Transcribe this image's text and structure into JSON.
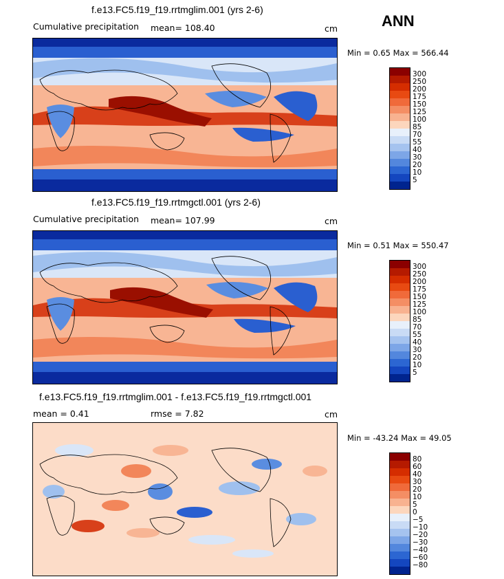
{
  "season": "ANN",
  "panels": [
    {
      "title": "f.e13.FC5.f19_f19.rrtmglim.001 (yrs 2-6)",
      "variable": "Cumulative precipitation",
      "stats_text": "mean=  108.40",
      "units": "cm",
      "minmax_text": "Min =   0.65 Max = 566.44",
      "palette": "prec"
    },
    {
      "title": "f.e13.FC5.f19_f19.rrtmgctl.001 (yrs 2-6)",
      "variable": "Cumulative precipitation",
      "stats_text": "mean=  107.99",
      "units": "cm",
      "minmax_text": "Min =   0.51 Max = 550.47",
      "palette": "prec"
    },
    {
      "title": "f.e13.FC5.f19_f19.rrtmglim.001 - f.e13.FC5.f19_f19.rrtmgctl.001",
      "variable": "mean =    0.41",
      "stats_text": "rmse =    7.82",
      "units": "cm",
      "minmax_text": "Min = -43.24 Max =  49.05",
      "palette": "diff"
    }
  ],
  "chart_data": [
    {
      "type": "heatmap",
      "title": "f.e13.FC5.f19_f19.rrtmglim.001 (yrs 2-6)",
      "variable": "Cumulative precipitation",
      "units": "cm",
      "mean": 108.4,
      "min": 0.65,
      "max": 566.44,
      "contour_levels": [
        5,
        10,
        20,
        30,
        40,
        55,
        70,
        85,
        100,
        125,
        150,
        175,
        200,
        250,
        300
      ]
    },
    {
      "type": "heatmap",
      "title": "f.e13.FC5.f19_f19.rrtmgctl.001 (yrs 2-6)",
      "variable": "Cumulative precipitation",
      "units": "cm",
      "mean": 107.99,
      "min": 0.51,
      "max": 550.47,
      "contour_levels": [
        5,
        10,
        20,
        30,
        40,
        55,
        70,
        85,
        100,
        125,
        150,
        175,
        200,
        250,
        300
      ]
    },
    {
      "type": "heatmap",
      "title": "f.e13.FC5.f19_f19.rrtmglim.001 - f.e13.FC5.f19_f19.rrtmgctl.001",
      "units": "cm",
      "mean": 0.41,
      "rmse": 7.82,
      "min": -43.24,
      "max": 49.05,
      "contour_levels": [
        -80,
        -60,
        -40,
        -30,
        -20,
        -10,
        -5,
        0,
        5,
        10,
        20,
        30,
        40,
        60,
        80
      ]
    }
  ],
  "colorbars": {
    "prec": {
      "labels": [
        "300",
        "250",
        "200",
        "175",
        "150",
        "125",
        "100",
        "85",
        "70",
        "55",
        "40",
        "30",
        "20",
        "10",
        "5"
      ],
      "colors": [
        "#8b0000",
        "#b51a00",
        "#d52d00",
        "#e84a12",
        "#f06a3a",
        "#f48e64",
        "#f8b290",
        "#fcd6bd",
        "#e8f0fb",
        "#c9dbf5",
        "#a5c3ef",
        "#7da6e7",
        "#5387dd",
        "#2c66d2",
        "#1446bf",
        "#00248f"
      ]
    },
    "diff": {
      "labels": [
        "80",
        "60",
        "40",
        "30",
        "20",
        "10",
        "5",
        "0",
        "−5",
        "−10",
        "−20",
        "−30",
        "−40",
        "−60",
        "−80"
      ],
      "colors": [
        "#8b0000",
        "#b51a00",
        "#d52d00",
        "#e84a12",
        "#f06a3a",
        "#f48e64",
        "#f8b290",
        "#fcd6bd",
        "#e8f0fb",
        "#c9dbf5",
        "#a5c3ef",
        "#7da6e7",
        "#5387dd",
        "#2c66d2",
        "#1446bf",
        "#00248f"
      ]
    }
  },
  "map_fields": {
    "field_colors": {
      "deep_red": "#9a0f00",
      "red": "#d8401a",
      "orange": "#f2865a",
      "salmon": "#f8b594",
      "peach": "#fcdcc8",
      "pale_blue": "#d9e6f8",
      "light_blue": "#9fc0ee",
      "mid_blue": "#5a8de0",
      "blue": "#2a5fd0",
      "navy": "#0a2a9e"
    }
  }
}
